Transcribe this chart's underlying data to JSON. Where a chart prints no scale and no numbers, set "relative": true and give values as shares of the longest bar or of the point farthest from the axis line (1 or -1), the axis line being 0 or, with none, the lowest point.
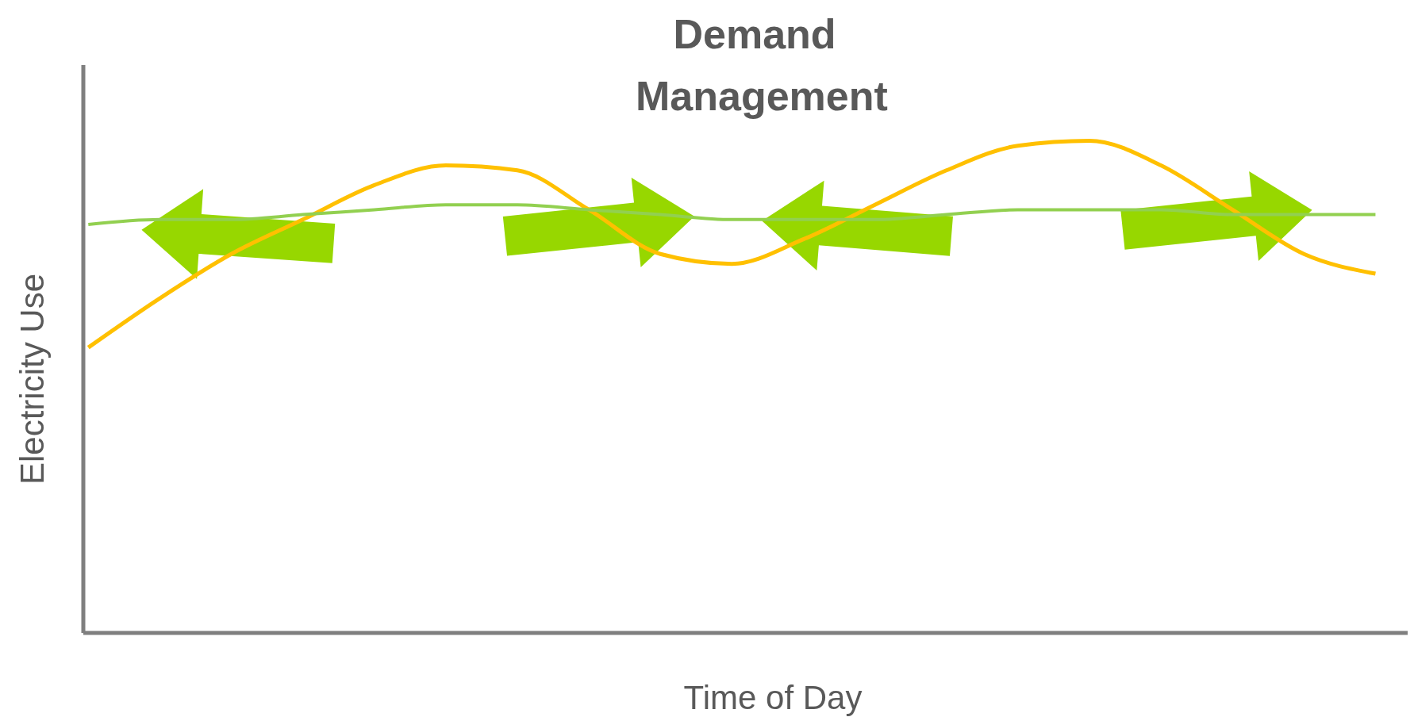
{
  "chart_data": {
    "type": "line",
    "title": "Demand Management",
    "xlabel": "Time of Day",
    "ylabel": "Electricity Use",
    "relative": true,
    "marker": "none",
    "categories": [
      null,
      null,
      null,
      null,
      null,
      null,
      null,
      null,
      null,
      null,
      null,
      null,
      null,
      null,
      null,
      null,
      null,
      null,
      null
    ],
    "series": [
      {
        "color": "#ffc000",
        "values": [
          0.58,
          0.68,
          0.77,
          0.84,
          0.91,
          0.95,
          0.94,
          0.86,
          0.77,
          0.75,
          0.8,
          0.87,
          0.94,
          0.99,
          1,
          0.95,
          0.86,
          0.77,
          0.73
        ]
      },
      {
        "color": "#92d050",
        "values": [
          0.83,
          0.84,
          0.84,
          0.85,
          0.86,
          0.87,
          0.87,
          0.86,
          0.85,
          0.84,
          0.84,
          0.84,
          0.85,
          0.86,
          0.86,
          0.86,
          0.85,
          0.85,
          0.85
        ]
      }
    ]
  }
}
